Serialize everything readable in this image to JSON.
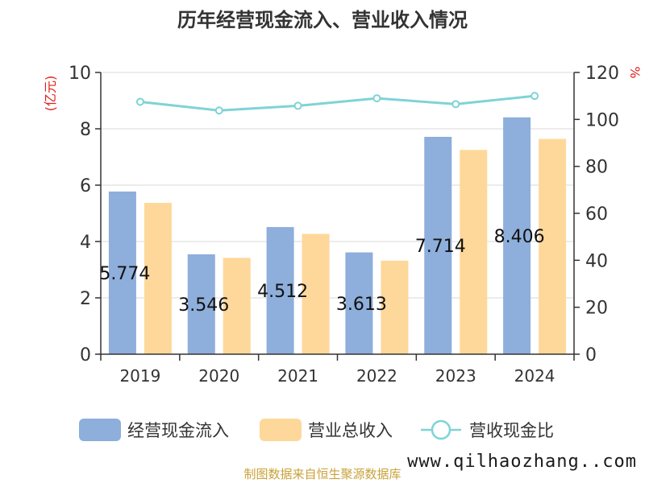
{
  "chart_data": {
    "type": "bar",
    "title": "历年经营现金流入、营业收入情况",
    "categories": [
      "2019",
      "2020",
      "2021",
      "2022",
      "2023",
      "2024"
    ],
    "series": [
      {
        "name": "经营现金流入",
        "type": "bar",
        "axis": "left",
        "color": "#8eaedb",
        "values": [
          5.774,
          3.546,
          4.512,
          3.613,
          7.714,
          8.406
        ],
        "labels": [
          "5.774",
          "3.546",
          "4.512",
          "3.613",
          "7.714",
          "8.406"
        ]
      },
      {
        "name": "营业总收入",
        "type": "bar",
        "axis": "left",
        "color": "#fed89a",
        "values": [
          5.37,
          3.42,
          4.27,
          3.32,
          7.25,
          7.64
        ]
      },
      {
        "name": "营收现金比",
        "type": "line",
        "axis": "right",
        "color": "#7fd3d6",
        "values": [
          107.5,
          103.8,
          105.8,
          109.0,
          106.5,
          110.0
        ]
      }
    ],
    "yleft": {
      "label": "(亿元)",
      "ylim": [
        0,
        10
      ],
      "ticks": [
        "0",
        "2",
        "4",
        "6",
        "8",
        "10"
      ]
    },
    "yright": {
      "label": "%",
      "ylim": [
        0,
        120
      ],
      "ticks": [
        "0",
        "20",
        "40",
        "60",
        "80",
        "100",
        "120"
      ]
    },
    "grid": true,
    "legend": "bottom",
    "source": "制图数据来自恒生聚源数据库",
    "watermark": "www.qilhaozhang..com"
  }
}
